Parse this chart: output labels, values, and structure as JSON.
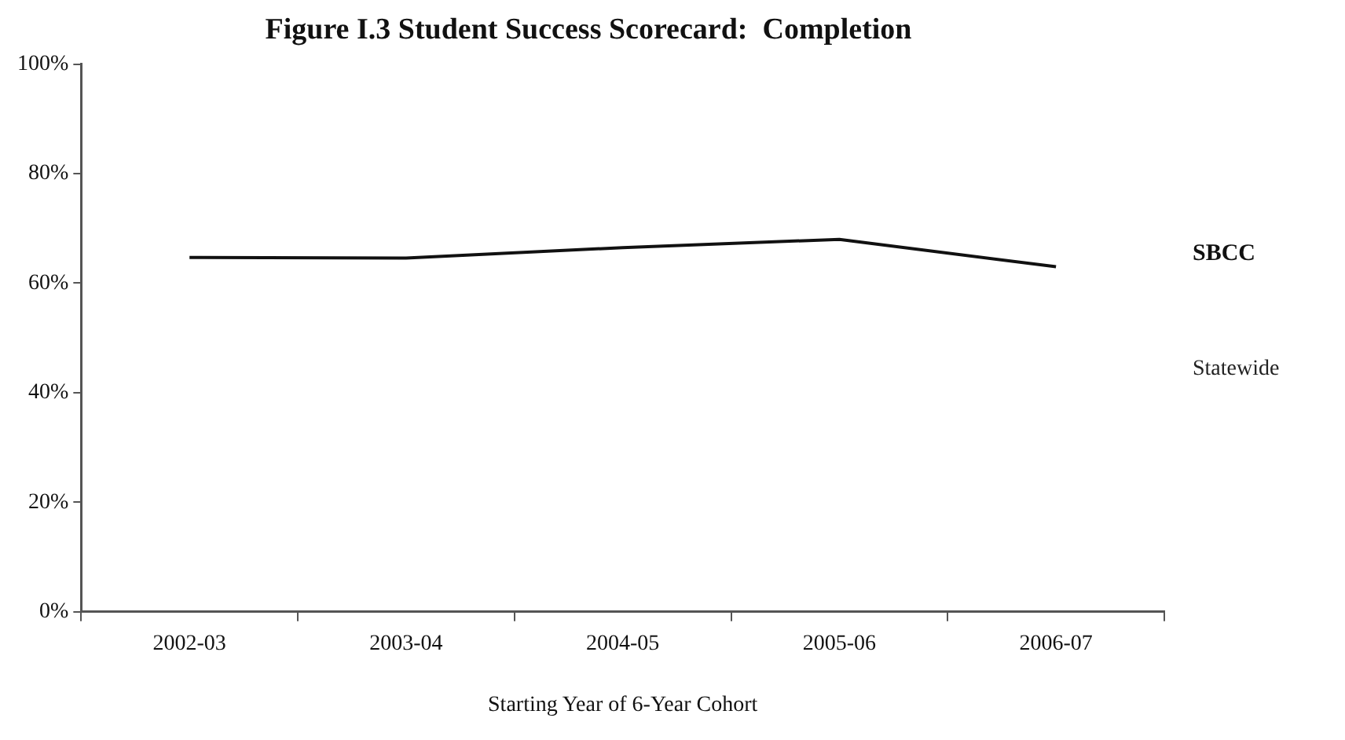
{
  "chart_data": {
    "type": "line",
    "title": "Figure I.3 Student Success Scorecard:  Completion",
    "xlabel": "Starting Year of 6-Year Cohort",
    "categories": [
      "2002-03",
      "2003-04",
      "2004-05",
      "2005-06",
      "2006-07"
    ],
    "series": [
      {
        "name": "SBCC",
        "color": "#111111",
        "values": [
          64.7,
          64.6,
          66.5,
          68,
          63
        ]
      }
    ],
    "annotations": [
      "Statewide"
    ],
    "ylim": [
      0,
      100
    ],
    "yticks": [
      {
        "value": 0,
        "label": "0%"
      },
      {
        "value": 20,
        "label": "20%"
      },
      {
        "value": 40,
        "label": "40%"
      },
      {
        "value": 60,
        "label": "60%"
      },
      {
        "value": 80,
        "label": "80%"
      },
      {
        "value": 100,
        "label": "100%"
      }
    ],
    "grid": false,
    "legend": false,
    "marker": "none",
    "line_style": "solid"
  }
}
